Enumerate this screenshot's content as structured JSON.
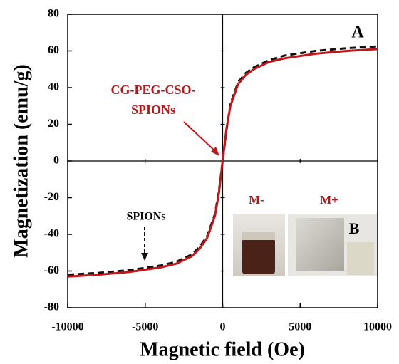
{
  "chart_data": {
    "type": "line",
    "x_label": "Magnetic field (Oe)",
    "y_label": "Magnetization (emu/g)",
    "x": [
      -10000,
      -8000,
      -6000,
      -4000,
      -3000,
      -2000,
      -1500,
      -1000,
      -500,
      -250,
      0,
      250,
      500,
      1000,
      1500,
      2000,
      3000,
      4000,
      6000,
      8000,
      10000
    ],
    "series": [
      {
        "color": "#111111",
        "dashed": true,
        "values": [
          -62,
          -61,
          -59.5,
          -57,
          -55,
          -51,
          -47,
          -41,
          -29,
          -17,
          0,
          17,
          31,
          43,
          48,
          51,
          55,
          57.5,
          60,
          61.5,
          62.5
        ]
      },
      {
        "color": "#c0171b",
        "dashed": false,
        "values": [
          -63,
          -62,
          -60.5,
          -58,
          -56,
          -52,
          -48,
          -42,
          -30,
          -18,
          0,
          18,
          30,
          42,
          47,
          50,
          54,
          56,
          58.5,
          60,
          61
        ]
      }
    ],
    "xlim": [
      -10000,
      10000
    ],
    "ylim": [
      -80,
      80
    ],
    "xticks": [
      -10000,
      -5000,
      0,
      5000,
      10000
    ],
    "yticks": [
      -80,
      -60,
      -40,
      -20,
      0,
      20,
      40,
      60,
      80
    ],
    "annotations": {
      "curve_label": [
        "CG-PEG-CSO-",
        "SPIONs"
      ],
      "dashed_label": "SPIONs",
      "panel_a": "A",
      "panel_b": "B",
      "inset_left": "M-",
      "inset_right": "M+"
    }
  }
}
